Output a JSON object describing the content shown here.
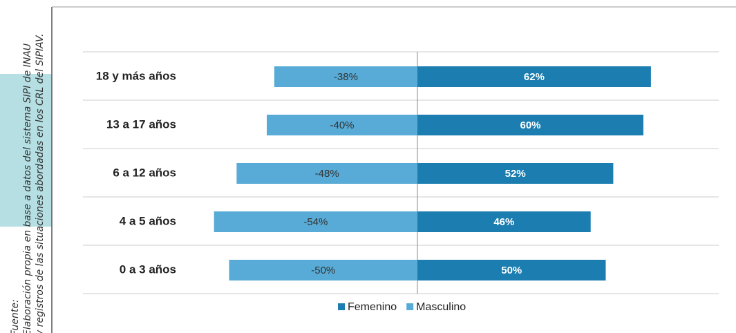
{
  "source": [
    "Fuente:",
    "Elaboración propia en base a datos del sistema SIPI de INAU",
    "y registros de las situaciones abordadas en los CRL del SIPIAV."
  ],
  "chart_data": {
    "type": "diverging_bar",
    "categories": [
      "18 y más años",
      "13 a 17 años",
      "6 a 12 años",
      "4 a 5 años",
      "0 a 3 años"
    ],
    "xlim": [
      -80,
      80
    ],
    "series": [
      {
        "name": "Femenino",
        "color": "#1b7db0",
        "values": [
          62,
          60,
          52,
          46,
          50
        ],
        "value_labels": [
          "62%",
          "60%",
          "52%",
          "46%",
          "50%"
        ]
      },
      {
        "name": "Masculino",
        "color": "#58abd6",
        "values": [
          -38,
          -40,
          -48,
          -54,
          -50
        ],
        "value_labels": [
          "-38%",
          "-40%",
          "-48%",
          "-54%",
          "-50%"
        ]
      }
    ]
  }
}
